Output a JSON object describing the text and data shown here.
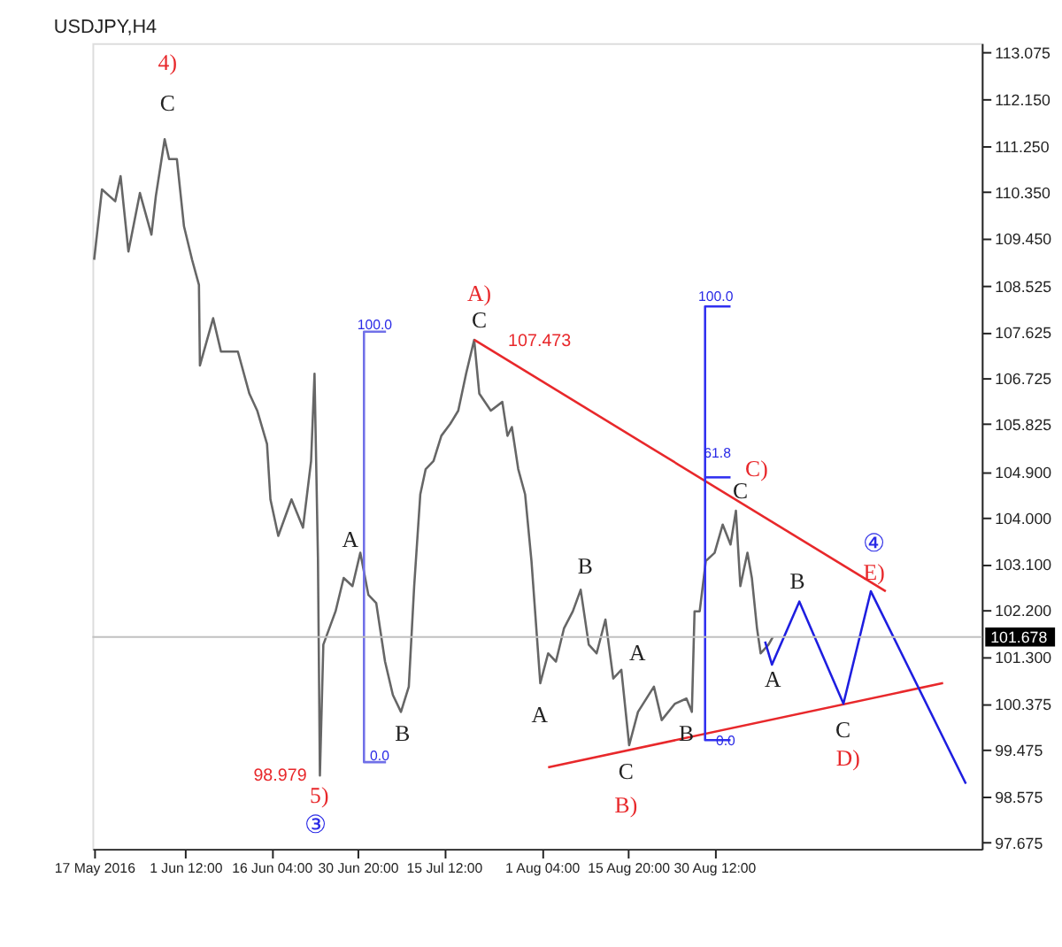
{
  "chart_data": {
    "type": "line",
    "title": "USDJPY,H4",
    "xlim": [
      "2016-05-16T17:00",
      "2016-10-15T01:00"
    ],
    "ylim": [
      97.55,
      113.25
    ],
    "xticks": [
      {
        "value": "2016-05-17",
        "label": "17 May 2016"
      },
      {
        "value": "2016-06-01T12:00",
        "label": "1 Jun 12:00"
      },
      {
        "value": "2016-06-16T04:00",
        "label": "16 Jun 04:00"
      },
      {
        "value": "2016-06-30T20:00",
        "label": "30 Jun 20:00"
      },
      {
        "value": "2016-07-15T12:00",
        "label": "15 Jul 12:00"
      },
      {
        "value": "2016-08-01T04:00",
        "label": "1 Aug 04:00"
      },
      {
        "value": "2016-08-15T20:00",
        "label": "15 Aug 20:00"
      },
      {
        "value": "2016-08-30T12:00",
        "label": "30 Aug 12:00"
      }
    ],
    "yticks": [
      97.675,
      98.575,
      99.475,
      100.375,
      {
        "value": 101.3,
        "label": "101.300"
      },
      {
        "value": 102.2,
        "label": "102.200"
      },
      {
        "value": 103.1,
        "label": "103.100"
      },
      {
        "value": 104.0,
        "label": "104.000"
      },
      {
        "value": 104.9,
        "label": "104.900"
      },
      105.825,
      106.725,
      107.625,
      108.525,
      {
        "value": 109.45,
        "label": "109.450"
      },
      {
        "value": 110.35,
        "label": "110.350"
      },
      {
        "value": 111.25,
        "label": "111.250"
      },
      {
        "value": 112.15,
        "label": "112.150"
      },
      113.075
    ],
    "grid": false,
    "marker": "none",
    "line_style": "solid",
    "series": [
      {
        "color": "#666666",
        "x": [
          "2016-05-17T00:00",
          "2016-05-18T08:00",
          "2016-05-20T14:00",
          "2016-05-21T12:00",
          "2016-05-22T20:00",
          "2016-05-24T19:00",
          "2016-05-26T18:00",
          "2016-05-27T12:00",
          "2016-05-29T00:00",
          "2016-05-29T18:00",
          "2016-05-31T02:00",
          "2016-06-01T07:00",
          "2016-06-02T16:00",
          "2016-06-03T20:00",
          "2016-06-04T00:00",
          "2016-06-06T06:00",
          "2016-06-07T14:00",
          "2016-06-10T11:00",
          "2016-06-12T10:00",
          "2016-06-13T18:00",
          "2016-06-15T10:00",
          "2016-06-16T00:00",
          "2016-06-17T08:00",
          "2016-06-19T14:00",
          "2016-06-21T13:00",
          "2016-06-22T22:00",
          "2016-06-23T12:00",
          "2016-06-24T02:00",
          "2016-06-24T10:00",
          "2016-06-25T00:00",
          "2016-06-27T02:00",
          "2016-06-28T11:00",
          "2016-06-29T23:00",
          "2016-07-01T07:00",
          "2016-07-02T16:00",
          "2016-07-04T00:00",
          "2016-07-05T12:00",
          "2016-07-06T20:00",
          "2016-07-08T05:00",
          "2016-07-09T13:00",
          "2016-07-10T11:00",
          "2016-07-11T12:00",
          "2016-07-12T10:00",
          "2016-07-13T18:00",
          "2016-07-15T02:00",
          "2016-07-16T14:00",
          "2016-07-17T23:00",
          "2016-07-19T07:00",
          "2016-07-20T16:00",
          "2016-07-21T13:00",
          "2016-07-23T12:00",
          "2016-07-25T11:00",
          "2016-07-26T08:00",
          "2016-07-27T02:00",
          "2016-07-28T04:00",
          "2016-07-29T08:00",
          "2016-07-30T10:00",
          "2016-07-31T22:00",
          "2016-08-02T06:00",
          "2016-08-03T14:00",
          "2016-08-04T23:00",
          "2016-08-06T11:00",
          "2016-08-07T19:00",
          "2016-08-09T04:00",
          "2016-08-10T12:00",
          "2016-08-12T00:00",
          "2016-08-13T08:00",
          "2016-08-14T17:00",
          "2016-08-16T01:00",
          "2016-08-17T13:00",
          "2016-08-20T06:00",
          "2016-08-21T14:00",
          "2016-08-23T20:00",
          "2016-08-25T19:00",
          "2016-08-26T17:00",
          "2016-08-27T04:00",
          "2016-08-28T01:00",
          "2016-08-29T02:00",
          "2016-08-30T14:00",
          "2016-08-31T23:00",
          "2016-09-02T07:00",
          "2016-09-03T05:00",
          "2016-09-03T23:00",
          "2016-09-05T04:00",
          "2016-09-05T22:00",
          "2016-09-06T19:00",
          "2016-09-07T10:00",
          "2016-09-08T18:00",
          "2016-09-09T12:00"
        ],
        "values": [
          109.03,
          110.4,
          110.17,
          110.66,
          109.19,
          110.33,
          109.52,
          110.27,
          111.38,
          110.99,
          110.99,
          109.68,
          109.03,
          108.54,
          106.97,
          107.89,
          107.24,
          107.24,
          106.42,
          106.09,
          105.44,
          104.36,
          103.65,
          104.36,
          103.81,
          105.11,
          106.81,
          103.22,
          98.98,
          101.53,
          102.18,
          102.83,
          102.67,
          103.32,
          102.5,
          102.34,
          101.2,
          100.55,
          100.22,
          100.71,
          102.67,
          104.46,
          104.95,
          105.11,
          105.6,
          105.83,
          106.09,
          106.81,
          107.47,
          106.42,
          106.09,
          106.26,
          105.6,
          105.77,
          104.95,
          104.46,
          103.16,
          100.78,
          101.36,
          101.2,
          101.85,
          102.18,
          102.6,
          101.53,
          101.36,
          102.02,
          100.87,
          101.04,
          99.57,
          100.22,
          100.71,
          100.06,
          100.38,
          100.48,
          100.22,
          102.18,
          102.18,
          103.16,
          103.32,
          103.87,
          103.48,
          104.14,
          102.67,
          103.32,
          102.83,
          101.85,
          101.36,
          101.53,
          101.68
        ]
      },
      {
        "color": "#e8282b",
        "x": [
          "2016-07-20T16:00",
          "2016-09-28T17:00"
        ],
        "values": [
          107.47,
          102.57
        ]
      },
      {
        "color": "#e8282b",
        "x": [
          "2016-08-02T06:00",
          "2016-10-08T11:00"
        ],
        "values": [
          99.14,
          100.78
        ]
      },
      {
        "color": "#1e1ee0",
        "x": [
          "2016-09-08T04:00",
          "2016-09-09T08:00",
          "2016-09-14T00:00",
          "2016-09-21T12:00",
          "2016-09-26T04:00",
          "2016-10-12T08:00"
        ],
        "values": [
          101.59,
          101.14,
          102.37,
          100.38,
          102.57,
          98.82
        ]
      },
      {
        "color": "#7070e8",
        "x": [
          "2016-07-05T16:00",
          "2016-07-01T22:00",
          "2016-07-01T22:00",
          "2016-07-05T16:00"
        ],
        "values": [
          107.63,
          107.63,
          99.24,
          99.24
        ]
      },
      {
        "color": "#3030f0",
        "x": [
          "2016-09-02T07:00",
          "2016-08-28T23:00",
          "2016-08-28T23:00",
          "2016-09-02T07:00"
        ],
        "values": [
          108.12,
          108.12,
          99.67,
          99.67
        ]
      },
      {
        "color": "#3030f0",
        "x": [
          "2016-08-28T23:00",
          "2016-09-02T07:00"
        ],
        "values": [
          104.79,
          104.79
        ]
      }
    ],
    "ref_lines": [
      {
        "axis": "y",
        "value": 101.678,
        "label": "101.678",
        "color": "#c0c0c0"
      }
    ],
    "annotations": [
      "4)",
      "C",
      "A)",
      "C",
      "107.473",
      "100.0",
      "0.0",
      "A",
      "B",
      "98.979",
      "5)",
      "③",
      "A",
      "B",
      "A",
      "C",
      "B)",
      "B",
      "100.0",
      "61.8",
      "C)",
      "C",
      "④",
      "E)",
      "B",
      "A",
      "C",
      "D)",
      "0.0"
    ]
  }
}
